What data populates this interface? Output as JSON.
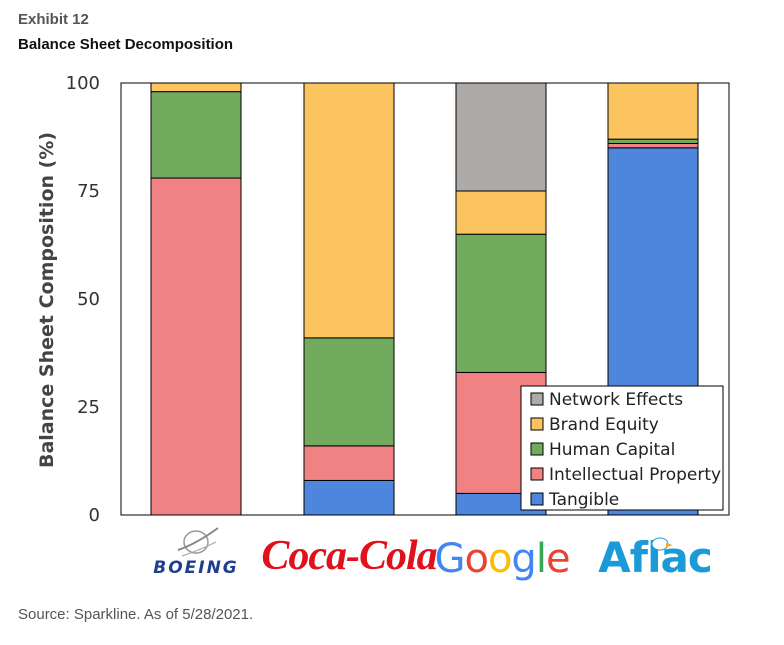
{
  "header": {
    "exhibit": "Exhibit 12",
    "title": "Balance Sheet Decomposition"
  },
  "footer": {
    "source": "Source: Sparkline. As of 5/28/2021."
  },
  "colors": {
    "Tangible": "#4f86dd",
    "Intellectual Property": "#f08284",
    "Human Capital": "#72ab5e",
    "Brand Equity": "#fcc45f",
    "Network Effects": "#aeaaa8"
  },
  "chart_data": {
    "type": "bar",
    "stacked": true,
    "title": "Balance Sheet Decomposition",
    "xlabel": "",
    "ylabel": "Balance Sheet Composition (%)",
    "ylim": [
      0,
      100
    ],
    "yticks": [
      0,
      25,
      50,
      75,
      100
    ],
    "categories": [
      "BOEING",
      "Coca-Cola",
      "Google",
      "Aflac"
    ],
    "series": [
      {
        "name": "Tangible",
        "values": [
          0,
          8,
          5,
          85
        ]
      },
      {
        "name": "Intellectual Property",
        "values": [
          78,
          8,
          28,
          1
        ]
      },
      {
        "name": "Human Capital",
        "values": [
          20,
          25,
          32,
          1
        ]
      },
      {
        "name": "Brand Equity",
        "values": [
          2,
          59,
          10,
          13
        ]
      },
      {
        "name": "Network Effects",
        "values": [
          0,
          0,
          25,
          0
        ]
      }
    ],
    "legend": {
      "placement": "bottom-right",
      "order": [
        "Network Effects",
        "Brand Equity",
        "Human Capital",
        "Intellectual Property",
        "Tangible"
      ]
    }
  },
  "logos": [
    {
      "name": "boeing",
      "text": "BOEING"
    },
    {
      "name": "coca-cola",
      "text": "Coca-Cola"
    },
    {
      "name": "google",
      "text": "Google"
    },
    {
      "name": "aflac",
      "text": "Aflac"
    }
  ]
}
